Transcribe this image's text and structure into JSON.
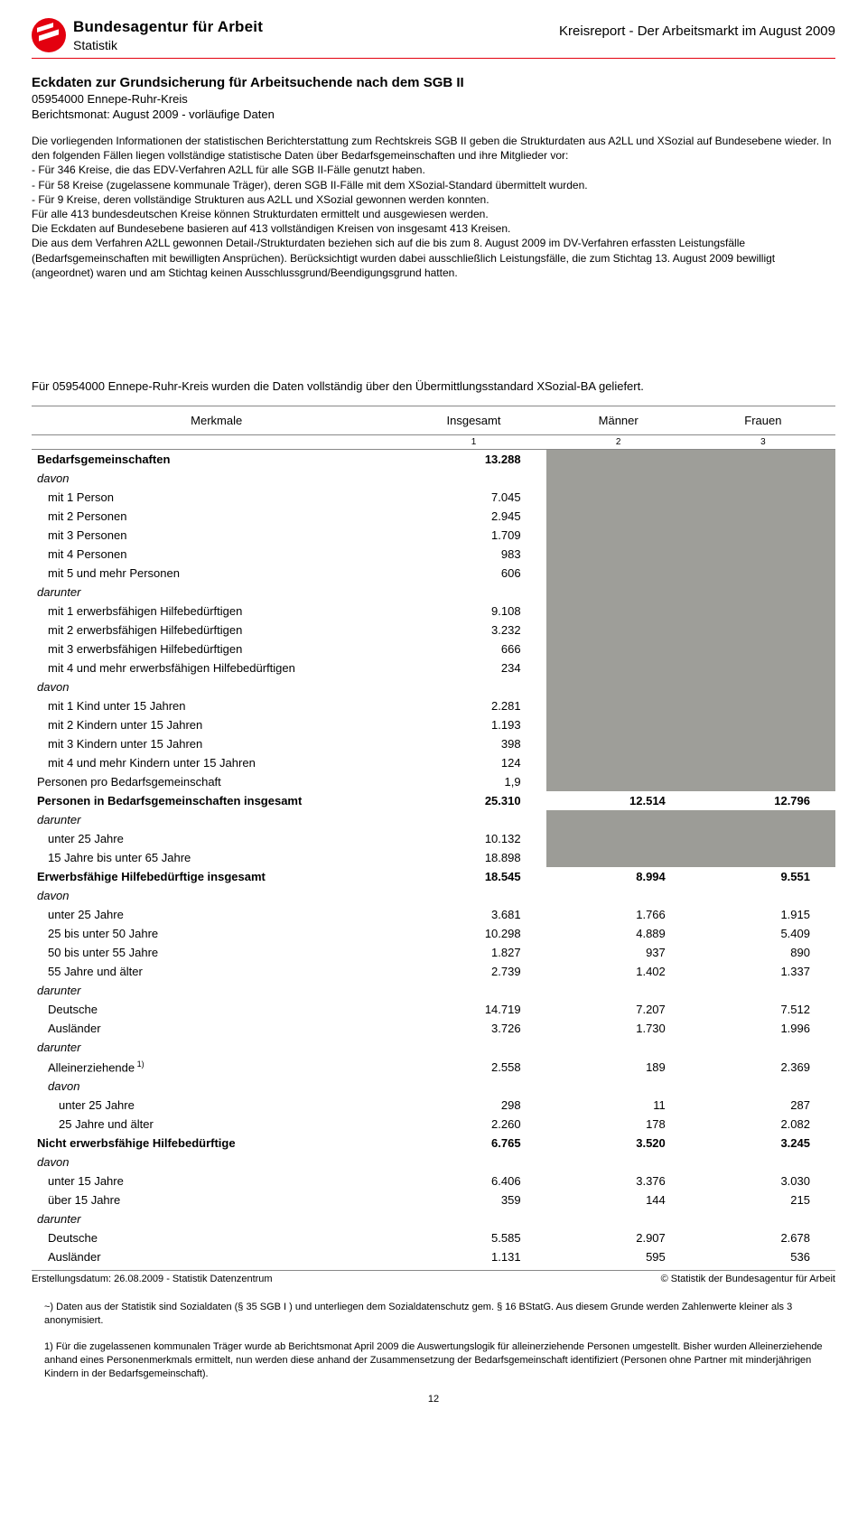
{
  "header": {
    "org_name": "Bundesagentur für Arbeit",
    "org_sub": "Statistik",
    "report_title": "Kreisreport - Der Arbeitsmarkt im August 2009",
    "logo_color": "#e3000f"
  },
  "section": {
    "title": "Eckdaten zur Grundsicherung für Arbeitsuchende nach dem SGB II",
    "region": "05954000 Ennepe-Ruhr-Kreis",
    "month": "Berichtsmonat: August 2009 - vorläufige Daten"
  },
  "intro": {
    "p1": "Die vorliegenden Informationen der statistischen Berichterstattung zum Rechtskreis SGB II geben die Strukturdaten aus A2LL und XSozial auf Bundesebene wieder. In den folgenden Fällen liegen vollständige statistische Daten über Bedarfsgemeinschaften und ihre Mitglieder vor:",
    "li1": "- Für 346 Kreise, die das EDV-Verfahren A2LL für alle SGB II-Fälle genutzt haben.",
    "li2": "- Für 58 Kreise (zugelassene kommunale Träger), deren SGB II-Fälle mit dem XSozial-Standard übermittelt wurden.",
    "li3": "- Für 9 Kreise, deren vollständige Strukturen aus A2LL und XSozial gewonnen werden konnten.",
    "p2": "Für alle 413 bundesdeutschen Kreise können Strukturdaten ermittelt und ausgewiesen werden.",
    "p3": "Die Eckdaten auf Bundesebene basieren auf 413 vollständigen Kreisen von insgesamt 413 Kreisen.",
    "p4": "Die aus dem Verfahren A2LL gewonnen Detail-/Strukturdaten beziehen sich auf die bis zum 8. August 2009 im DV-Verfahren erfassten Leistungsfälle (Bedarfsgemeinschaften mit bewilligten Ansprüchen). Berücksichtigt wurden dabei ausschließlich Leistungsfälle, die zum Stichtag 13. August 2009 bewilligt (angeordnet) waren und am Stichtag keinen Ausschlussgrund/Beendigungsgrund hatten."
  },
  "transfer_note": "Für 05954000 Ennepe-Ruhr-Kreis wurden die Daten vollständig über den Übermittlungsstandard XSozial-BA geliefert.",
  "table": {
    "headers": {
      "merkmale": "Merkmale",
      "insgesamt": "Insgesamt",
      "maenner": "Männer",
      "frauen": "Frauen"
    },
    "colnums": {
      "c1": "1",
      "c2": "2",
      "c3": "3"
    },
    "rows": [
      {
        "label": "Bedarfsgemeinschaften",
        "v1": "13.288",
        "v2": "",
        "v3": "",
        "bold": true,
        "shade23": true
      },
      {
        "label": "davon",
        "italic": true,
        "shade23": true
      },
      {
        "label": "mit 1 Person",
        "v1": "7.045",
        "ind": 1,
        "shade23": true
      },
      {
        "label": "mit 2 Personen",
        "v1": "2.945",
        "ind": 1,
        "shade23": true
      },
      {
        "label": "mit 3 Personen",
        "v1": "1.709",
        "ind": 1,
        "shade23": true
      },
      {
        "label": "mit 4 Personen",
        "v1": "983",
        "ind": 1,
        "shade23": true
      },
      {
        "label": "mit 5 und mehr Personen",
        "v1": "606",
        "ind": 1,
        "shade23": true
      },
      {
        "label": "darunter",
        "italic": true,
        "shade23": true
      },
      {
        "label": "mit 1 erwerbsfähigen Hilfebedürftigen",
        "v1": "9.108",
        "ind": 1,
        "shade23": true
      },
      {
        "label": "mit 2 erwerbsfähigen Hilfebedürftigen",
        "v1": "3.232",
        "ind": 1,
        "shade23": true
      },
      {
        "label": "mit 3 erwerbsfähigen Hilfebedürftigen",
        "v1": "666",
        "ind": 1,
        "shade23": true
      },
      {
        "label": "mit 4 und mehr erwerbsfähigen Hilfebedürftigen",
        "v1": "234",
        "ind": 1,
        "shade23": true
      },
      {
        "label": "davon",
        "italic": true,
        "shade23": true
      },
      {
        "label": "mit 1 Kind unter 15 Jahren",
        "v1": "2.281",
        "ind": 1,
        "shade23": true
      },
      {
        "label": "mit 2 Kindern unter 15 Jahren",
        "v1": "1.193",
        "ind": 1,
        "shade23": true
      },
      {
        "label": "mit 3 Kindern unter 15 Jahren",
        "v1": "398",
        "ind": 1,
        "shade23": true
      },
      {
        "label": "mit 4 und mehr Kindern unter 15 Jahren",
        "v1": "124",
        "ind": 1,
        "shade23": true
      },
      {
        "label": "Personen pro Bedarfsgemeinschaft",
        "v1": "1,9",
        "shade23": true
      },
      {
        "label": "Personen in Bedarfsgemeinschaften insgesamt",
        "v1": "25.310",
        "v2": "12.514",
        "v3": "12.796",
        "bold": true
      },
      {
        "label": "darunter",
        "italic": true,
        "shade23": true,
        "shade23_light": true
      },
      {
        "label": "unter 25 Jahre",
        "v1": "10.132",
        "ind": 1,
        "shade23": true,
        "shade23_light": true
      },
      {
        "label": "15 Jahre bis unter 65 Jahre",
        "v1": "18.898",
        "ind": 1,
        "shade23": true,
        "shade23_light": true
      },
      {
        "label": "Erwerbsfähige Hilfebedürftige insgesamt",
        "v1": "18.545",
        "v2": "8.994",
        "v3": "9.551",
        "bold": true
      },
      {
        "label": "davon",
        "italic": true
      },
      {
        "label": "unter 25 Jahre",
        "v1": "3.681",
        "v2": "1.766",
        "v3": "1.915",
        "ind": 1
      },
      {
        "label": "25 bis unter 50 Jahre",
        "v1": "10.298",
        "v2": "4.889",
        "v3": "5.409",
        "ind": 1
      },
      {
        "label": "50 bis unter 55 Jahre",
        "v1": "1.827",
        "v2": "937",
        "v3": "890",
        "ind": 1
      },
      {
        "label": "55 Jahre und älter",
        "v1": "2.739",
        "v2": "1.402",
        "v3": "1.337",
        "ind": 1
      },
      {
        "label": "darunter",
        "italic": true
      },
      {
        "label": "Deutsche",
        "v1": "14.719",
        "v2": "7.207",
        "v3": "7.512",
        "ind": 1
      },
      {
        "label": "Ausländer",
        "v1": "3.726",
        "v2": "1.730",
        "v3": "1.996",
        "ind": 1
      },
      {
        "label": "darunter",
        "italic": true
      },
      {
        "label": "Alleinerziehende",
        "sup": "1)",
        "v1": "2.558",
        "v2": "189",
        "v3": "2.369",
        "ind": 1
      },
      {
        "label": "davon",
        "italic": true,
        "ind": 1
      },
      {
        "label": "unter 25 Jahre",
        "v1": "298",
        "v2": "11",
        "v3": "287",
        "ind": 2
      },
      {
        "label": "25 Jahre und älter",
        "v1": "2.260",
        "v2": "178",
        "v3": "2.082",
        "ind": 2
      },
      {
        "label": "Nicht erwerbsfähige Hilfebedürftige",
        "v1": "6.765",
        "v2": "3.520",
        "v3": "3.245",
        "bold": true
      },
      {
        "label": "davon",
        "italic": true
      },
      {
        "label": "unter 15 Jahre",
        "v1": "6.406",
        "v2": "3.376",
        "v3": "3.030",
        "ind": 1
      },
      {
        "label": "über 15 Jahre",
        "v1": "359",
        "v2": "144",
        "v3": "215",
        "ind": 1
      },
      {
        "label": "darunter",
        "italic": true
      },
      {
        "label": "Deutsche",
        "v1": "5.585",
        "v2": "2.907",
        "v3": "2.678",
        "ind": 1
      },
      {
        "label": "Ausländer",
        "v1": "1.131",
        "v2": "595",
        "v3": "536",
        "ind": 1
      }
    ],
    "shade_color": "#9e9e99",
    "shade_color_light": "#9c9c97"
  },
  "footer": {
    "created": "Erstellungsdatum: 26.08.2009 - Statistik Datenzentrum",
    "copyright": "© Statistik der Bundesagentur für Arbeit"
  },
  "footnotes": {
    "fn_anon": "~) Daten aus der Statistik sind Sozialdaten (§ 35 SGB I ) und unterliegen dem Sozialdatenschutz gem. § 16 BStatG. Aus diesem Grunde werden Zahlenwerte kleiner als 3 anonymisiert.",
    "fn1": "1) Für die zugelassenen kommunalen Träger wurde ab Berichtsmonat April 2009 die Auswertungslogik für alleinerziehende Personen umgestellt. Bisher wurden Alleinerziehende anhand eines Personenmerkmals ermittelt, nun werden diese anhand der Zusammensetzung der Bedarfsgemeinschaft identifiziert (Personen ohne Partner mit minderjährigen Kindern in der Bedarfsgemeinschaft).",
    "pagenum": "12"
  }
}
